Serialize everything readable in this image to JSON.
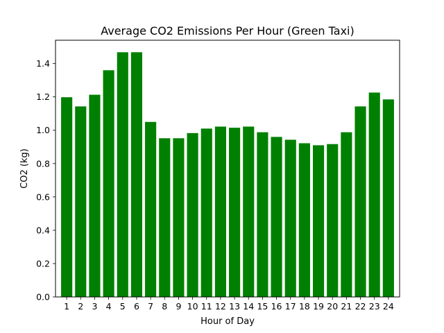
{
  "chart_data": {
    "type": "bar",
    "title": "Average CO2 Emissions Per Hour (Green Taxi)",
    "xlabel": "Hour of Day",
    "ylabel": "CO2 (kg)",
    "categories": [
      "1",
      "2",
      "3",
      "4",
      "5",
      "6",
      "7",
      "8",
      "9",
      "10",
      "11",
      "12",
      "13",
      "14",
      "15",
      "16",
      "17",
      "18",
      "19",
      "20",
      "21",
      "22",
      "23",
      "24"
    ],
    "values": [
      1.198,
      1.143,
      1.213,
      1.36,
      1.468,
      1.468,
      1.05,
      0.952,
      0.952,
      0.983,
      1.01,
      1.022,
      1.015,
      1.022,
      0.988,
      0.96,
      0.943,
      0.922,
      0.91,
      0.917,
      0.988,
      1.143,
      1.226,
      1.185
    ],
    "ylim": [
      0,
      1.54
    ],
    "yticks": [
      0.0,
      0.2,
      0.4,
      0.6,
      0.8,
      1.0,
      1.2,
      1.4
    ],
    "ytick_labels": [
      "0.0",
      "0.2",
      "0.4",
      "0.6",
      "0.8",
      "1.0",
      "1.2",
      "1.4"
    ],
    "bar_color": "#008000",
    "grid": false,
    "legend": "none"
  }
}
